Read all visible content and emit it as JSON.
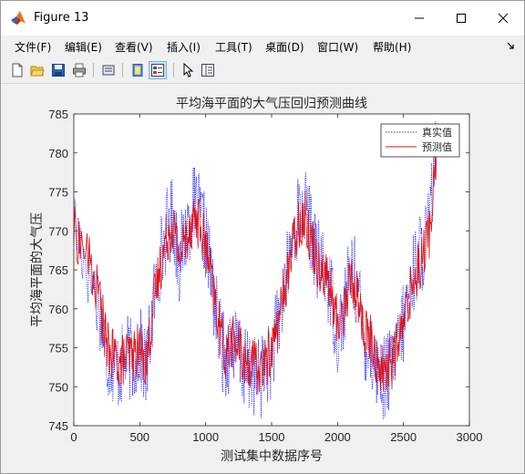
{
  "window": {
    "title": "Figure 13"
  },
  "menubar": {
    "items": [
      "文件(F)",
      "编辑(E)",
      "查看(V)",
      "插入(I)",
      "工具(T)",
      "桌面(D)",
      "窗口(W)",
      "帮助(H)"
    ]
  },
  "toolbar": {
    "icons": [
      "new-figure-icon",
      "open-file-icon",
      "save-icon",
      "print-icon",
      "link-plot-icon",
      "hide-plot-tools-icon",
      "show-plot-tools-icon",
      "edit-plot-arrow-icon",
      "property-editor-icon"
    ]
  },
  "colors": {
    "true_series": "#1f1fff",
    "pred_series": "#e01010"
  },
  "chart_data": {
    "type": "line",
    "title": "平均海平面的大气压回归预测曲线",
    "xlabel": "测试集中数据序号",
    "ylabel": "平均海平面的大气压",
    "xlim": [
      0,
      3000
    ],
    "ylim": [
      745,
      785
    ],
    "xticks": [
      0,
      500,
      1000,
      1500,
      2000,
      2500,
      3000
    ],
    "yticks": [
      745,
      750,
      755,
      760,
      765,
      770,
      775,
      780,
      785
    ],
    "legend": {
      "position": "top-right",
      "entries": [
        "真实值",
        "预测值"
      ]
    },
    "series": [
      {
        "name": "真实值",
        "style": "dotted",
        "x": [
          0,
          100,
          200,
          250,
          300,
          350,
          400,
          450,
          500,
          550,
          600,
          650,
          700,
          750,
          800,
          850,
          900,
          950,
          1000,
          1050,
          1100,
          1150,
          1200,
          1250,
          1300,
          1350,
          1400,
          1450,
          1500,
          1550,
          1600,
          1650,
          1700,
          1750,
          1800,
          1850,
          1900,
          1950,
          2000,
          2050,
          2100,
          2150,
          2200,
          2250,
          2300,
          2350,
          2400,
          2450,
          2500,
          2550,
          2600,
          2650,
          2700,
          2750
        ],
        "y": [
          771,
          766,
          760,
          754,
          753,
          752,
          754,
          753,
          755,
          752,
          760,
          766,
          770,
          772,
          766,
          770,
          773,
          772,
          769,
          763,
          757,
          753,
          756,
          754,
          752,
          752,
          751,
          752,
          754,
          758,
          763,
          768,
          772,
          773,
          770,
          766,
          765,
          762,
          757,
          760,
          765,
          763,
          756,
          755,
          752,
          751,
          752,
          754,
          758,
          763,
          766,
          768,
          771,
          782
        ]
      },
      {
        "name": "预测值",
        "style": "solid",
        "x": [
          0,
          100,
          200,
          250,
          300,
          350,
          400,
          450,
          500,
          550,
          600,
          650,
          700,
          750,
          800,
          850,
          900,
          950,
          1000,
          1050,
          1100,
          1150,
          1200,
          1250,
          1300,
          1350,
          1400,
          1450,
          1500,
          1550,
          1600,
          1650,
          1700,
          1750,
          1800,
          1850,
          1900,
          1950,
          2000,
          2050,
          2100,
          2150,
          2200,
          2250,
          2300,
          2350,
          2400,
          2450,
          2500,
          2550,
          2600,
          2650,
          2700,
          2750
        ],
        "y": [
          770,
          767,
          761,
          755,
          754,
          753,
          754,
          754,
          755,
          753,
          760,
          765,
          769,
          771,
          767,
          769,
          772,
          771,
          768,
          763,
          758,
          754,
          756,
          755,
          753,
          753,
          752,
          753,
          755,
          758,
          763,
          767,
          771,
          772,
          769,
          766,
          765,
          762,
          758,
          760,
          764,
          762,
          757,
          756,
          753,
          752,
          753,
          755,
          758,
          762,
          765,
          767,
          770,
          780
        ]
      }
    ]
  }
}
